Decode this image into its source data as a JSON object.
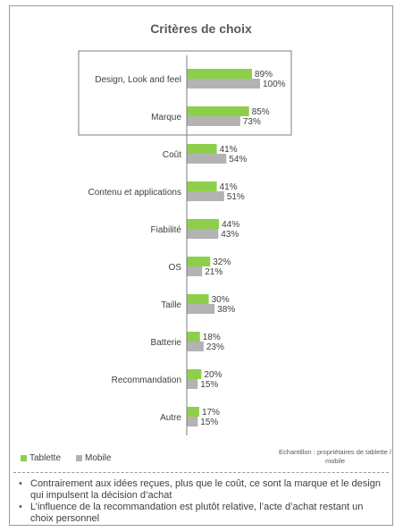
{
  "chart_data": {
    "type": "bar",
    "orientation": "horizontal",
    "title": "Critères de choix",
    "categories": [
      "Design, Look and feel",
      "Marque",
      "Coût",
      "Contenu et applications",
      "Fiabilité",
      "OS",
      "Taille",
      "Batterie",
      "Recommandation",
      "Autre"
    ],
    "series": [
      {
        "name": "Tablette",
        "values": [
          89,
          85,
          41,
          41,
          44,
          32,
          30,
          18,
          20,
          17
        ],
        "color": "#8dcf4a"
      },
      {
        "name": "Mobile",
        "values": [
          100,
          73,
          54,
          51,
          43,
          21,
          38,
          23,
          15,
          15
        ],
        "color": "#b3b3b3"
      }
    ],
    "value_suffix": "%",
    "highlighted_categories": [
      "Design, Look and feel",
      "Marque"
    ],
    "grid": false,
    "legend_position": "bottom-left"
  },
  "legend": {
    "tablette": "Tablette",
    "mobile": "Mobile"
  },
  "sample_note": "Echantillon : propriétaires de tablette / mobile",
  "notes": [
    "Contrairement aux idées reçues, plus que le coût, ce sont la marque et le design qui impulsent la décision d’achat",
    "L’influence de la recommandation est plutôt relative, l’acte d’achat restant un choix personnel"
  ],
  "colors": {
    "tablette": "#8dcf4a",
    "mobile": "#b3b3b3",
    "axis": "#7f7f7f",
    "highlight_box": "#7f7f7f"
  }
}
